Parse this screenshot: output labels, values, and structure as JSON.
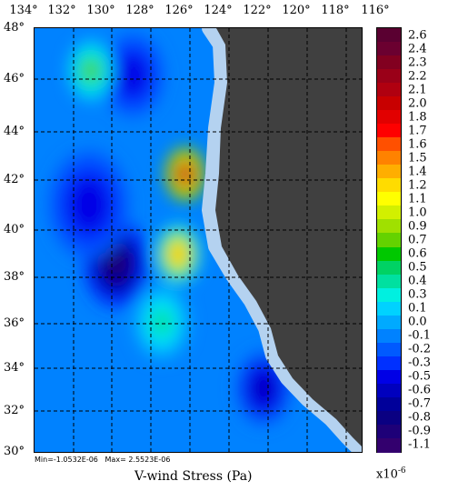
{
  "map": {
    "lon_ticks": [
      "134°",
      "132°",
      "130°",
      "128°",
      "126°",
      "124°",
      "122°",
      "120°",
      "118°",
      "116°"
    ],
    "lat_ticks": [
      "48°",
      "46°",
      "44°",
      "42°",
      "40°",
      "38°",
      "36°",
      "34°",
      "32°",
      "30°"
    ],
    "lon_range": [
      134,
      116
    ],
    "lat_range": [
      30,
      48
    ],
    "gridlines": true,
    "land_color": "#404040",
    "coast_color": "#b4d2f0"
  },
  "legend": {
    "labels": [
      "2.6",
      "2.4",
      "2.3",
      "2.2",
      "2.1",
      "2.0",
      "1.8",
      "1.7",
      "1.6",
      "1.5",
      "1.4",
      "1.2",
      "1.1",
      "1.0",
      "0.9",
      "0.7",
      "0.6",
      "0.5",
      "0.4",
      "0.3",
      "0.1",
      "0.0",
      "-0.1",
      "-0.2",
      "-0.3",
      "-0.5",
      "-0.6",
      "-0.7",
      "-0.8",
      "-0.9",
      "-1.1"
    ],
    "colors": [
      "#5a0031",
      "#6b0030",
      "#820020",
      "#9a0018",
      "#b00010",
      "#c80000",
      "#e20000",
      "#fe0000",
      "#ff5000",
      "#ff8200",
      "#ffae00",
      "#ffdc00",
      "#ffff00",
      "#d2f000",
      "#a0e000",
      "#64d200",
      "#00c800",
      "#00d264",
      "#00e0a0",
      "#00f0e0",
      "#00d2ff",
      "#00aaff",
      "#0082ff",
      "#005aff",
      "#0030ff",
      "#0000e6",
      "#0000be",
      "#00009a",
      "#0a0082",
      "#1e0078",
      "#33006e"
    ],
    "scale_base": "x10",
    "scale_exp": "-6"
  },
  "stats": {
    "text": "Min=-1.0532E-06   Max= 2.5523E-06"
  },
  "axis": {
    "xlabel": "V-wind Stress (Pa)"
  },
  "field_blobs": [
    {
      "lon": 129.5,
      "lat": 38.0,
      "value": -1.0,
      "radius_deg": 1.8
    },
    {
      "lon": 131.0,
      "lat": 40.5,
      "value": -0.5,
      "radius_deg": 2.2
    },
    {
      "lon": 128.6,
      "lat": 46.0,
      "value": -0.5,
      "radius_deg": 1.7
    },
    {
      "lon": 125.7,
      "lat": 41.8,
      "value": 2.5,
      "radius_deg": 1.1
    },
    {
      "lon": 126.1,
      "lat": 38.4,
      "value": 1.5,
      "radius_deg": 1.2
    },
    {
      "lon": 130.9,
      "lat": 46.2,
      "value": 0.7,
      "radius_deg": 1.2
    },
    {
      "lon": 121.4,
      "lat": 32.7,
      "value": -0.7,
      "radius_deg": 1.5
    },
    {
      "lon": 127.0,
      "lat": 35.5,
      "value": 0.5,
      "radius_deg": 1.5
    }
  ]
}
